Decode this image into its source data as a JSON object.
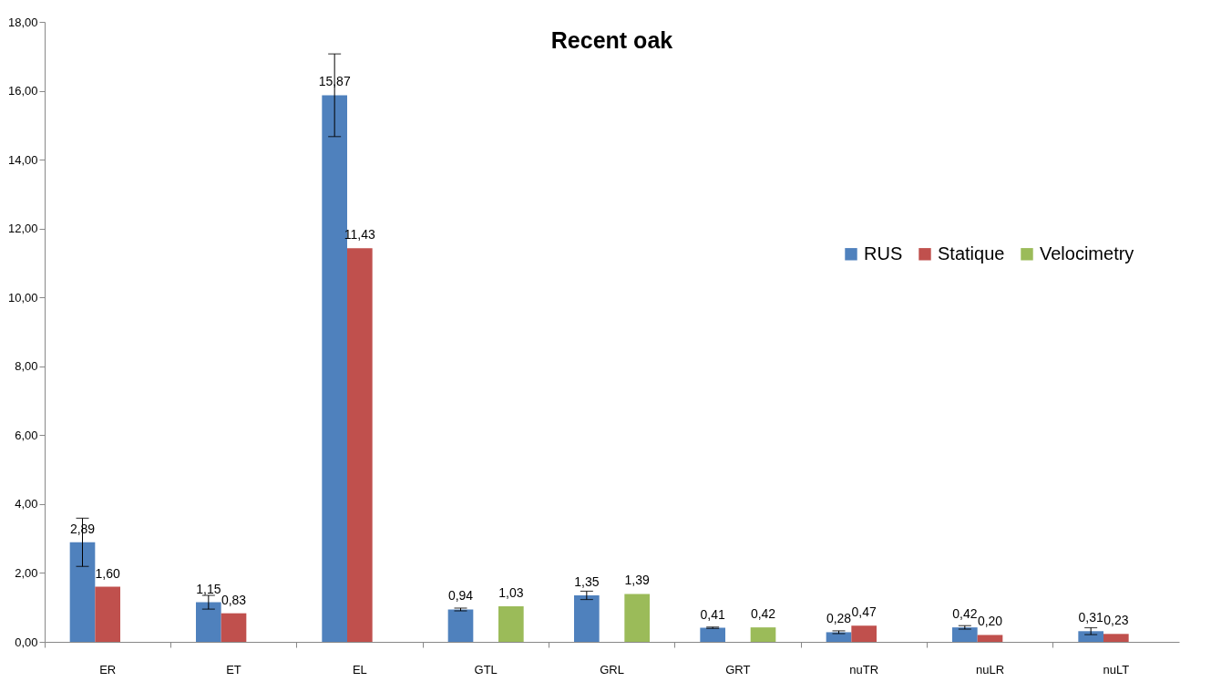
{
  "chart_data": {
    "type": "bar",
    "title": "Recent oak",
    "categories": [
      "ER",
      "ET",
      "EL",
      "GTL",
      "GRL",
      "GRT",
      "nuTR",
      "nuLR",
      "nuLT"
    ],
    "series": [
      {
        "name": "RUS",
        "color": "#4f81bd",
        "values": [
          2.89,
          1.15,
          15.87,
          0.94,
          1.35,
          0.41,
          0.28,
          0.42,
          0.31
        ],
        "errors": [
          0.7,
          0.2,
          1.2,
          0.04,
          0.12,
          0.02,
          0.04,
          0.05,
          0.1
        ],
        "value_labels": [
          "2,89",
          "1,15",
          "15,87",
          "0,94",
          "1,35",
          "0,41",
          "0,28",
          "0,42",
          "0,31"
        ]
      },
      {
        "name": "Statique",
        "color": "#c0504d",
        "values": [
          1.6,
          0.83,
          11.43,
          null,
          null,
          null,
          0.47,
          0.2,
          0.23
        ],
        "value_labels": [
          "1,60",
          "0,83",
          "11,43",
          null,
          null,
          null,
          "0,47",
          "0,20",
          "0,23"
        ]
      },
      {
        "name": "Velocimetry",
        "color": "#9bbb59",
        "values": [
          null,
          null,
          null,
          1.03,
          1.39,
          0.42,
          null,
          null,
          null
        ],
        "value_labels": [
          null,
          null,
          null,
          "1,03",
          "1,39",
          "0,42",
          null,
          null,
          null
        ]
      }
    ],
    "ylim": [
      0,
      18
    ],
    "yticks": [
      {
        "value": 0,
        "label": "0,00"
      },
      {
        "value": 2,
        "label": "2,00"
      },
      {
        "value": 4,
        "label": "4,00"
      },
      {
        "value": 6,
        "label": "6,00"
      },
      {
        "value": 8,
        "label": "8,00"
      },
      {
        "value": 10,
        "label": "10,00"
      },
      {
        "value": 12,
        "label": "12,00"
      },
      {
        "value": 14,
        "label": "14,00"
      },
      {
        "value": 16,
        "label": "16,00"
      },
      {
        "value": 18,
        "label": "18,00"
      }
    ],
    "grid": false,
    "legend": "right"
  }
}
